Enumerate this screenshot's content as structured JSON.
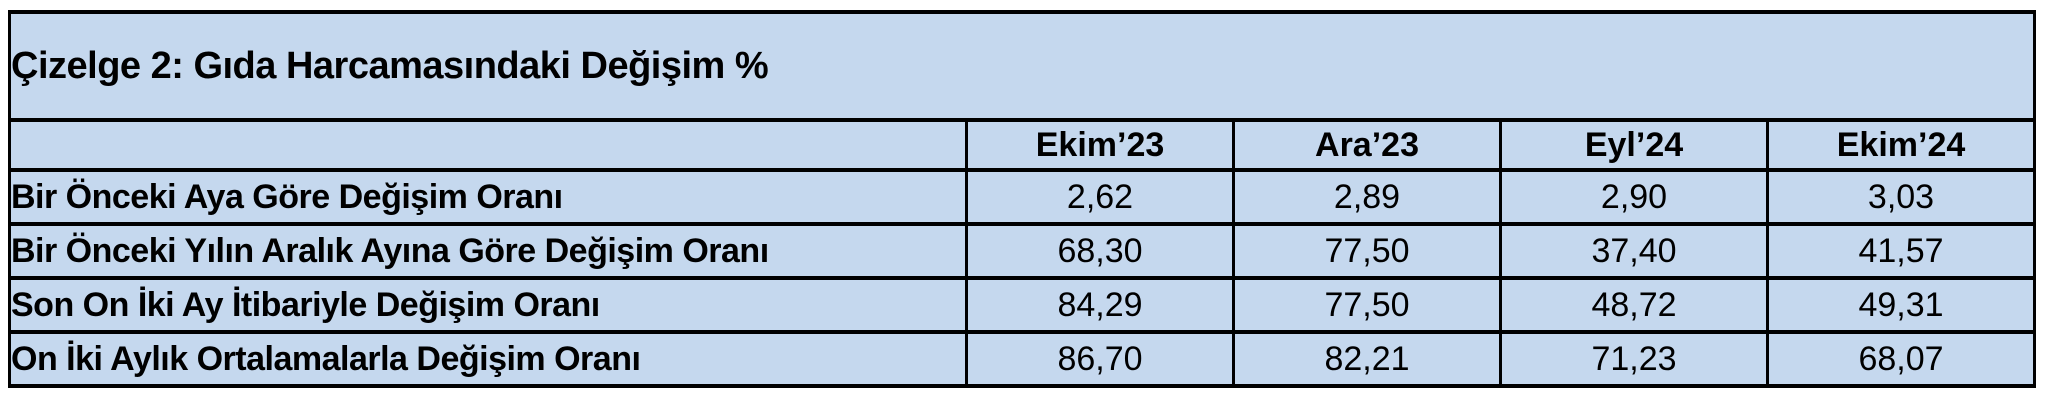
{
  "title": "Çizelge 2: Gıda Harcamasındaki Değişim %",
  "colors": {
    "cell_background": "#C5D8EE",
    "border": "#000000",
    "text": "#000000",
    "page_background": "#FFFFFF"
  },
  "table": {
    "columns": [
      "Ekim’23",
      "Ara’23",
      "Eyl’24",
      "Ekim’24"
    ],
    "rows": [
      {
        "label": "Bir Önceki Aya Göre Değişim Oranı",
        "values": [
          "2,62",
          "2,89",
          "2,90",
          "3,03"
        ]
      },
      {
        "label": "Bir Önceki Yılın Aralık Ayına Göre Değişim Oranı",
        "values": [
          "68,30",
          "77,50",
          "37,40",
          "41,57"
        ]
      },
      {
        "label": "Son On İki Ay İtibariyle Değişim Oranı",
        "values": [
          "84,29",
          "77,50",
          "48,72",
          "49,31"
        ]
      },
      {
        "label": "On İki Aylık Ortalamalarla Değişim Oranı",
        "values": [
          "86,70",
          "82,21",
          "71,23",
          "68,07"
        ]
      }
    ]
  },
  "chart_data": {
    "type": "table",
    "title": "Çizelge 2: Gıda Harcamasındaki Değişim %",
    "columns": [
      "Ekim’23",
      "Ara’23",
      "Eyl’24",
      "Ekim’24"
    ],
    "row_labels": [
      "Bir Önceki Aya Göre Değişim Oranı",
      "Bir Önceki Yılın Aralık Ayına Göre Değişim Oranı",
      "Son On İki Ay İtibariyle Değişim Oranı",
      "On İki Aylık Ortalamalarla Değişim Oranı"
    ],
    "values": [
      [
        2.62,
        2.89,
        2.9,
        3.03
      ],
      [
        68.3,
        77.5,
        37.4,
        41.57
      ],
      [
        84.29,
        77.5,
        48.72,
        49.31
      ],
      [
        86.7,
        82.21,
        71.23,
        68.07
      ]
    ],
    "decimal_separator": ",",
    "unit": "%"
  }
}
